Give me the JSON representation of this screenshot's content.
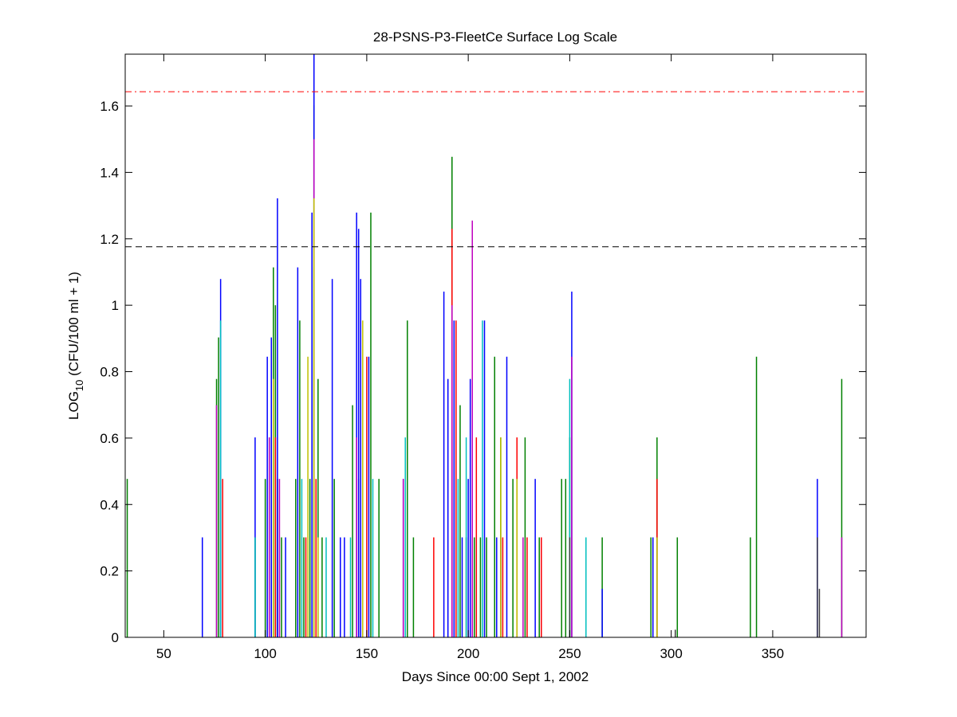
{
  "chart_data": {
    "type": "bar",
    "title": "28-PSNS-P3-FleetCe Surface Log Scale",
    "xlabel": "Days Since 00:00 Sept 1, 2002",
    "ylabel": {
      "main": "LOG",
      "sub": "10",
      "rest": " (CFU/100 ml + 1)"
    },
    "xlim": [
      31,
      396
    ],
    "ylim": [
      0,
      1.756
    ],
    "xticks": [
      50,
      100,
      150,
      200,
      250,
      300,
      350
    ],
    "yticks": [
      0,
      0.2,
      0.4,
      0.6,
      0.8,
      1,
      1.2,
      1.4,
      1.6
    ],
    "hlines": [
      {
        "value": 1.643,
        "color": "#ff0000",
        "style": "dashdot"
      },
      {
        "value": 1.176,
        "color": "#000000",
        "style": "dashed"
      }
    ],
    "series": [
      {
        "color": "#008000",
        "x": [
          32,
          76,
          77,
          95,
          100,
          102,
          104,
          105,
          106,
          115,
          117,
          119,
          122,
          124,
          126,
          128,
          143,
          146,
          152,
          156,
          170,
          173,
          192,
          196,
          199,
          203,
          206,
          209,
          213,
          216,
          222,
          228,
          235,
          246,
          250,
          266,
          290,
          293,
          303,
          339,
          342,
          384,
          248,
          108,
          134
        ],
        "values": [
          0.477,
          0.778,
          0.903,
          0.301,
          0.477,
          0.602,
          1.114,
          1.0,
          0.477,
          0.477,
          0.954,
          0.301,
          0.477,
          1.602,
          0.778,
          0.301,
          0.699,
          0.477,
          1.279,
          0.477,
          0.954,
          0.301,
          1.447,
          0.699,
          0.301,
          0.301,
          0.301,
          0.301,
          0.845,
          0.602,
          0.477,
          0.602,
          0.301,
          0.477,
          0.602,
          0.301,
          0.301,
          0.602,
          0.301,
          0.301,
          0.845,
          0.778,
          0.477,
          0.301,
          0.477
        ]
      },
      {
        "color": "#0000ff",
        "x": [
          69,
          78,
          95,
          101,
          103,
          106,
          116,
          123,
          124,
          133,
          137,
          145,
          146,
          147,
          151,
          168,
          188,
          190,
          193,
          197,
          200,
          201,
          208,
          214,
          219,
          233,
          236,
          251,
          266,
          291,
          372,
          139,
          110
        ],
        "values": [
          0.301,
          1.079,
          0.602,
          0.845,
          0.903,
          1.322,
          1.114,
          1.279,
          1.756,
          1.079,
          0.301,
          1.279,
          1.23,
          1.079,
          0.845,
          0.477,
          1.041,
          0.778,
          0.954,
          0.301,
          0.477,
          0.778,
          0.954,
          0.301,
          0.845,
          0.477,
          0.301,
          1.041,
          0.146,
          0.301,
          0.477,
          0.301,
          0.301
        ]
      },
      {
        "color": "#ff0000",
        "x": [
          79,
          105,
          120,
          125,
          150,
          183,
          192,
          194,
          204,
          217,
          224,
          236,
          293,
          229
        ],
        "values": [
          0.477,
          0.602,
          0.301,
          0.477,
          0.845,
          0.301,
          1.23,
          0.954,
          0.602,
          0.301,
          0.602,
          0.301,
          0.477,
          0.301
        ]
      },
      {
        "color": "#00bfbf",
        "x": [
          78,
          95,
          104,
          118,
          124,
          130,
          142,
          153,
          169,
          195,
          207,
          250,
          258,
          199
        ],
        "values": [
          0.954,
          0.301,
          0.602,
          0.477,
          1.114,
          0.301,
          0.301,
          0.477,
          0.602,
          0.477,
          0.954,
          0.778,
          0.301,
          0.602
        ]
      },
      {
        "color": "#bf00bf",
        "x": [
          76,
          102,
          107,
          145,
          168,
          192,
          202,
          216,
          227,
          251,
          384,
          124
        ],
        "values": [
          0.699,
          0.602,
          0.477,
          0.602,
          0.477,
          1.0,
          1.255,
          0.301,
          0.301,
          0.845,
          0.301,
          1.5
        ]
      },
      {
        "color": "#bfbf00",
        "x": [
          104,
          121,
          124,
          126,
          148,
          216,
          224,
          293
        ],
        "values": [
          0.778,
          0.845,
          1.322,
          0.301,
          0.954,
          0.602,
          0.477,
          0.301
        ]
      },
      {
        "color": "#404040",
        "x": [
          250,
          302,
          372,
          373
        ],
        "values": [
          0.301,
          0.023,
          0.301,
          0.146
        ]
      }
    ]
  }
}
